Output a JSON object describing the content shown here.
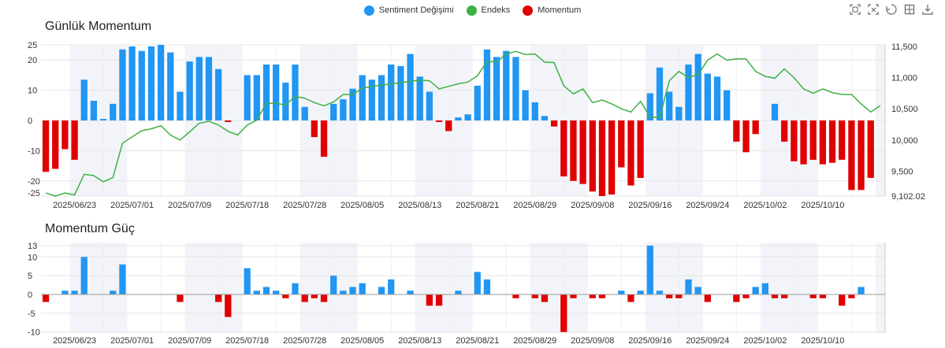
{
  "legend": {
    "items": [
      {
        "label": "Sentiment Değişimi",
        "color": "#2196f3"
      },
      {
        "label": "Endeks",
        "color": "#3cb043"
      },
      {
        "label": "Momentum",
        "color": "#e00000"
      }
    ]
  },
  "toolbox": [
    "zoom-icon",
    "zoom-reset-icon",
    "restore-icon",
    "fullscreen-icon",
    "save-image-icon"
  ],
  "chart_data": [
    {
      "type": "bar+line",
      "title": "Günlük Momentum",
      "x_tick_labels": [
        "2025/06/23",
        "2025/07/01",
        "2025/07/09",
        "2025/07/18",
        "2025/07/28",
        "2025/08/05",
        "2025/08/13",
        "2025/08/21",
        "2025/08/29",
        "2025/09/08",
        "2025/09/16",
        "2025/09/24",
        "2025/10/02",
        "2025/10/10"
      ],
      "ylim_left": [
        -25,
        25
      ],
      "y_ticks_left": [
        "-25",
        "-20",
        "-10",
        "0",
        "10",
        "20",
        "25"
      ],
      "ylim_right": [
        9102.02,
        11500
      ],
      "y_ticks_right": [
        "9,102.02",
        "9,500",
        "10,000",
        "10,500",
        "11,000",
        "11,500"
      ],
      "series": [
        {
          "name": "Sentiment Değişimi",
          "color": "#2196f3",
          "values": [
            0,
            0,
            0,
            0,
            13.5,
            6.5,
            0.5,
            5.5,
            23.5,
            24.5,
            23,
            24.5,
            25,
            22.5,
            9.5,
            19.5,
            21,
            21,
            17,
            0,
            0,
            15,
            15,
            18.5,
            18.5,
            12.5,
            18.5,
            4.5,
            0,
            0,
            5.5,
            7,
            10.5,
            15,
            13.5,
            15,
            18.5,
            18,
            22,
            14.5,
            9.5,
            0,
            0,
            1,
            2,
            11.5,
            23.5,
            21,
            23,
            21,
            10,
            6,
            1.5,
            0,
            0,
            0,
            0,
            0,
            0,
            0,
            0,
            0,
            0,
            9,
            17.5,
            9.5,
            4.5,
            18.5,
            22,
            15.5,
            14.5,
            10,
            0,
            0,
            0,
            0,
            5.5,
            0,
            0,
            0,
            0,
            0,
            0,
            0,
            0,
            0,
            0,
            0
          ]
        },
        {
          "name": "Momentum",
          "color": "#e00000",
          "values": [
            -17,
            -16,
            -9.5,
            -13,
            0,
            0,
            0,
            0,
            0,
            0,
            0,
            0,
            0,
            0,
            0,
            0,
            0,
            0,
            0,
            -0.5,
            0,
            0,
            0,
            0,
            0,
            0,
            0,
            0,
            -5.5,
            -12,
            0,
            0,
            0,
            0,
            0,
            0,
            0,
            0,
            0,
            0,
            0,
            -0.5,
            -3.5,
            0,
            0,
            0,
            0,
            0,
            0,
            0,
            0,
            0,
            0,
            -2,
            -18.5,
            -20,
            -21,
            -23.5,
            -25,
            -24.5,
            -15.5,
            -21.5,
            -19,
            0,
            0,
            0,
            0,
            0,
            0,
            0,
            0,
            0,
            -7,
            -10.5,
            -4.5,
            0,
            0,
            -7,
            -13.5,
            -14.5,
            -13,
            -14.5,
            -14,
            -13,
            -23,
            -23,
            -19,
            0
          ]
        },
        {
          "name": "Endeks",
          "color": "#3cb043",
          "values": [
            9150,
            9102,
            9150,
            9120,
            9450,
            9430,
            9330,
            9400,
            9950,
            10050,
            10150,
            10180,
            10230,
            10080,
            10000,
            10130,
            10270,
            10300,
            10240,
            10140,
            10080,
            10240,
            10320,
            10590,
            10590,
            10560,
            10700,
            10670,
            10600,
            10550,
            10610,
            10730,
            10730,
            10830,
            10860,
            10880,
            10900,
            10920,
            10940,
            10960,
            10950,
            10820,
            10860,
            10900,
            10930,
            11030,
            11260,
            11250,
            11380,
            11420,
            11370,
            11380,
            11250,
            11240,
            10870,
            10740,
            10820,
            10600,
            10640,
            10580,
            10500,
            10450,
            10620,
            10370,
            10360,
            10950,
            11100,
            11000,
            11050,
            11280,
            11380,
            11280,
            11300,
            11300,
            11100,
            11020,
            10990,
            11140,
            11000,
            10820,
            10750,
            10820,
            10760,
            10730,
            10730,
            10580,
            10450,
            10550
          ]
        }
      ]
    },
    {
      "type": "bar",
      "title": "Momentum Güç",
      "x_tick_labels": [
        "2025/06/23",
        "2025/07/01",
        "2025/07/09",
        "2025/07/18",
        "2025/07/28",
        "2025/08/05",
        "2025/08/13",
        "2025/08/21",
        "2025/08/29",
        "2025/09/08",
        "2025/09/16",
        "2025/09/24",
        "2025/10/02",
        "2025/10/10"
      ],
      "ylim": [
        -10,
        13
      ],
      "y_ticks": [
        "-10",
        "-5",
        "0",
        "5",
        "10",
        "13"
      ],
      "series": [
        {
          "name": "Momentum Güç",
          "values": [
            -2,
            0,
            1,
            1,
            10,
            0,
            0,
            1,
            8,
            0,
            0,
            0,
            0,
            0,
            -2,
            0,
            0,
            0,
            -2,
            -6,
            0,
            7,
            1,
            2,
            1,
            -1,
            3,
            -2,
            -1,
            -2,
            5,
            1,
            2,
            3,
            0,
            2,
            4,
            0,
            1,
            0,
            -3,
            -3,
            0,
            1,
            0,
            6,
            4,
            0,
            0,
            -1,
            0,
            -1,
            -2,
            0,
            -10,
            -1,
            0,
            -1,
            -1,
            0,
            1,
            -2,
            1,
            13,
            1,
            -1,
            -1,
            4,
            2,
            -2,
            0,
            0,
            -2,
            -1,
            2,
            3,
            -1,
            -1,
            0,
            0,
            -1,
            -1,
            0,
            -3,
            -1,
            2,
            0,
            0
          ]
        }
      ],
      "positive_color": "#2196f3",
      "negative_color": "#e00000"
    }
  ]
}
